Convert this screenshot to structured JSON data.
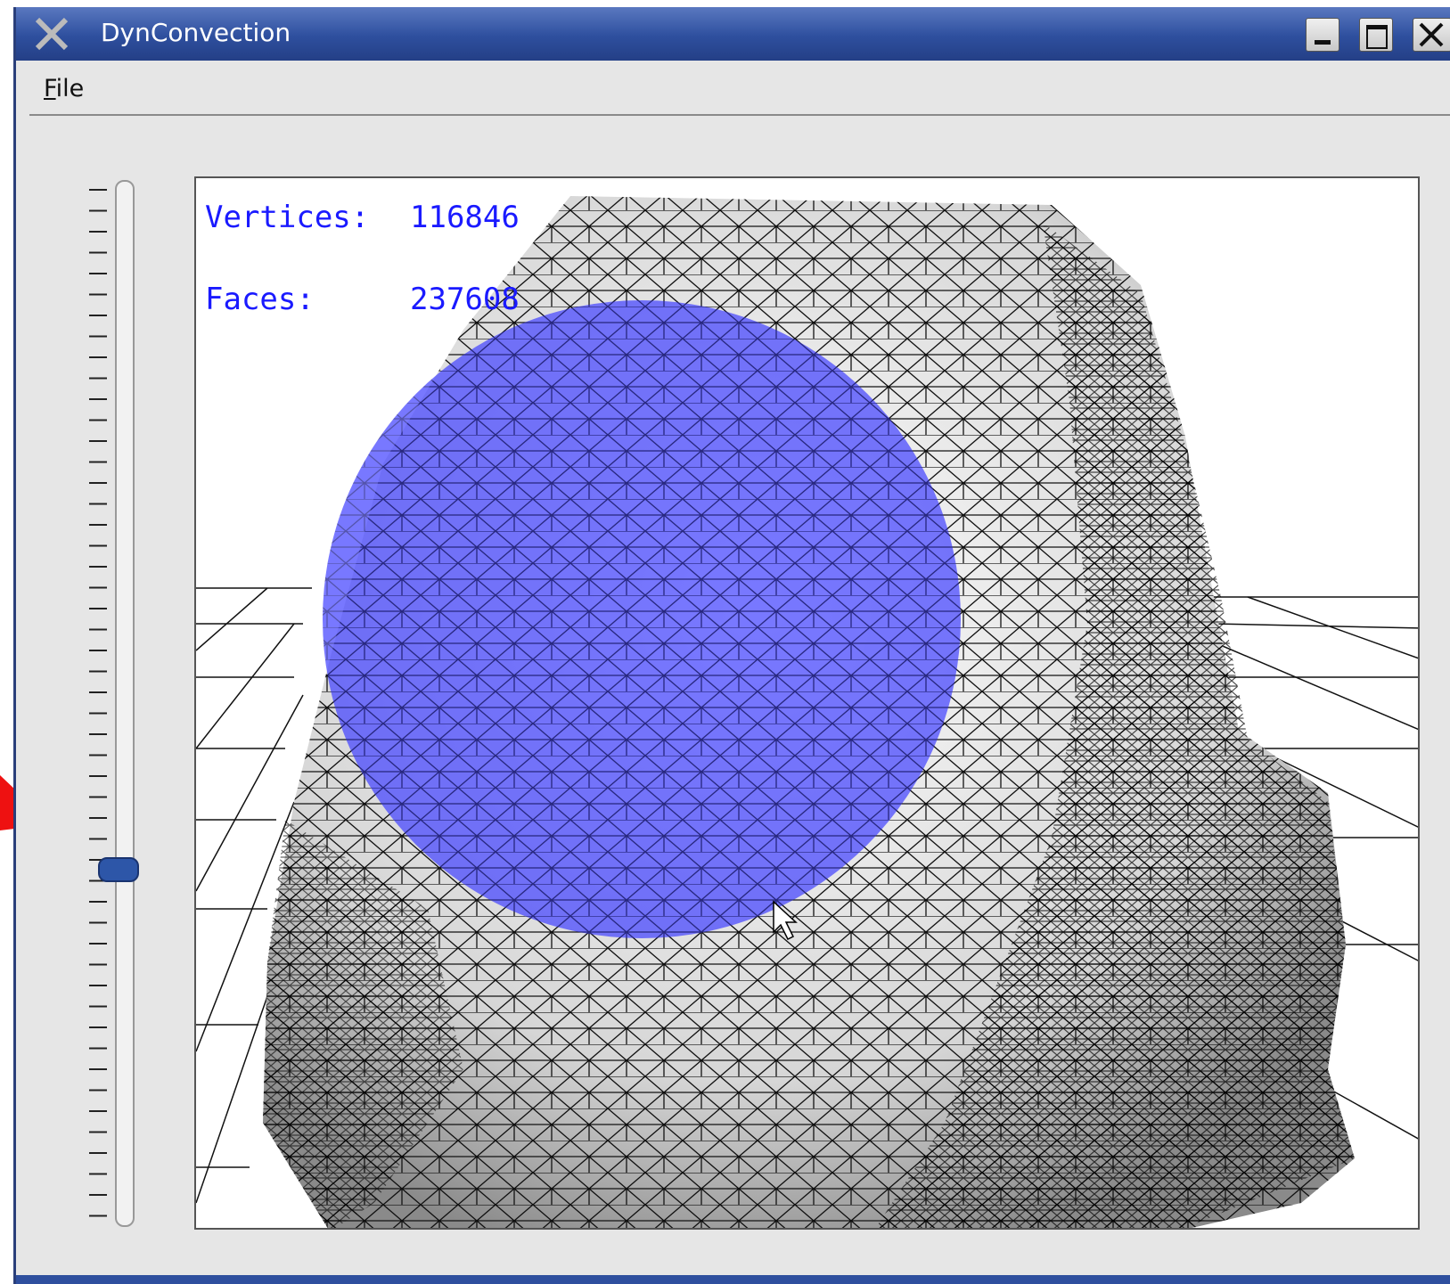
{
  "window": {
    "title": "DynConvection"
  },
  "menu": {
    "items": [
      "File"
    ]
  },
  "viewport": {
    "overlay": [
      {
        "label": "Vertices:",
        "value": "116846"
      },
      {
        "label": "Faces:",
        "value": "237608"
      }
    ]
  }
}
